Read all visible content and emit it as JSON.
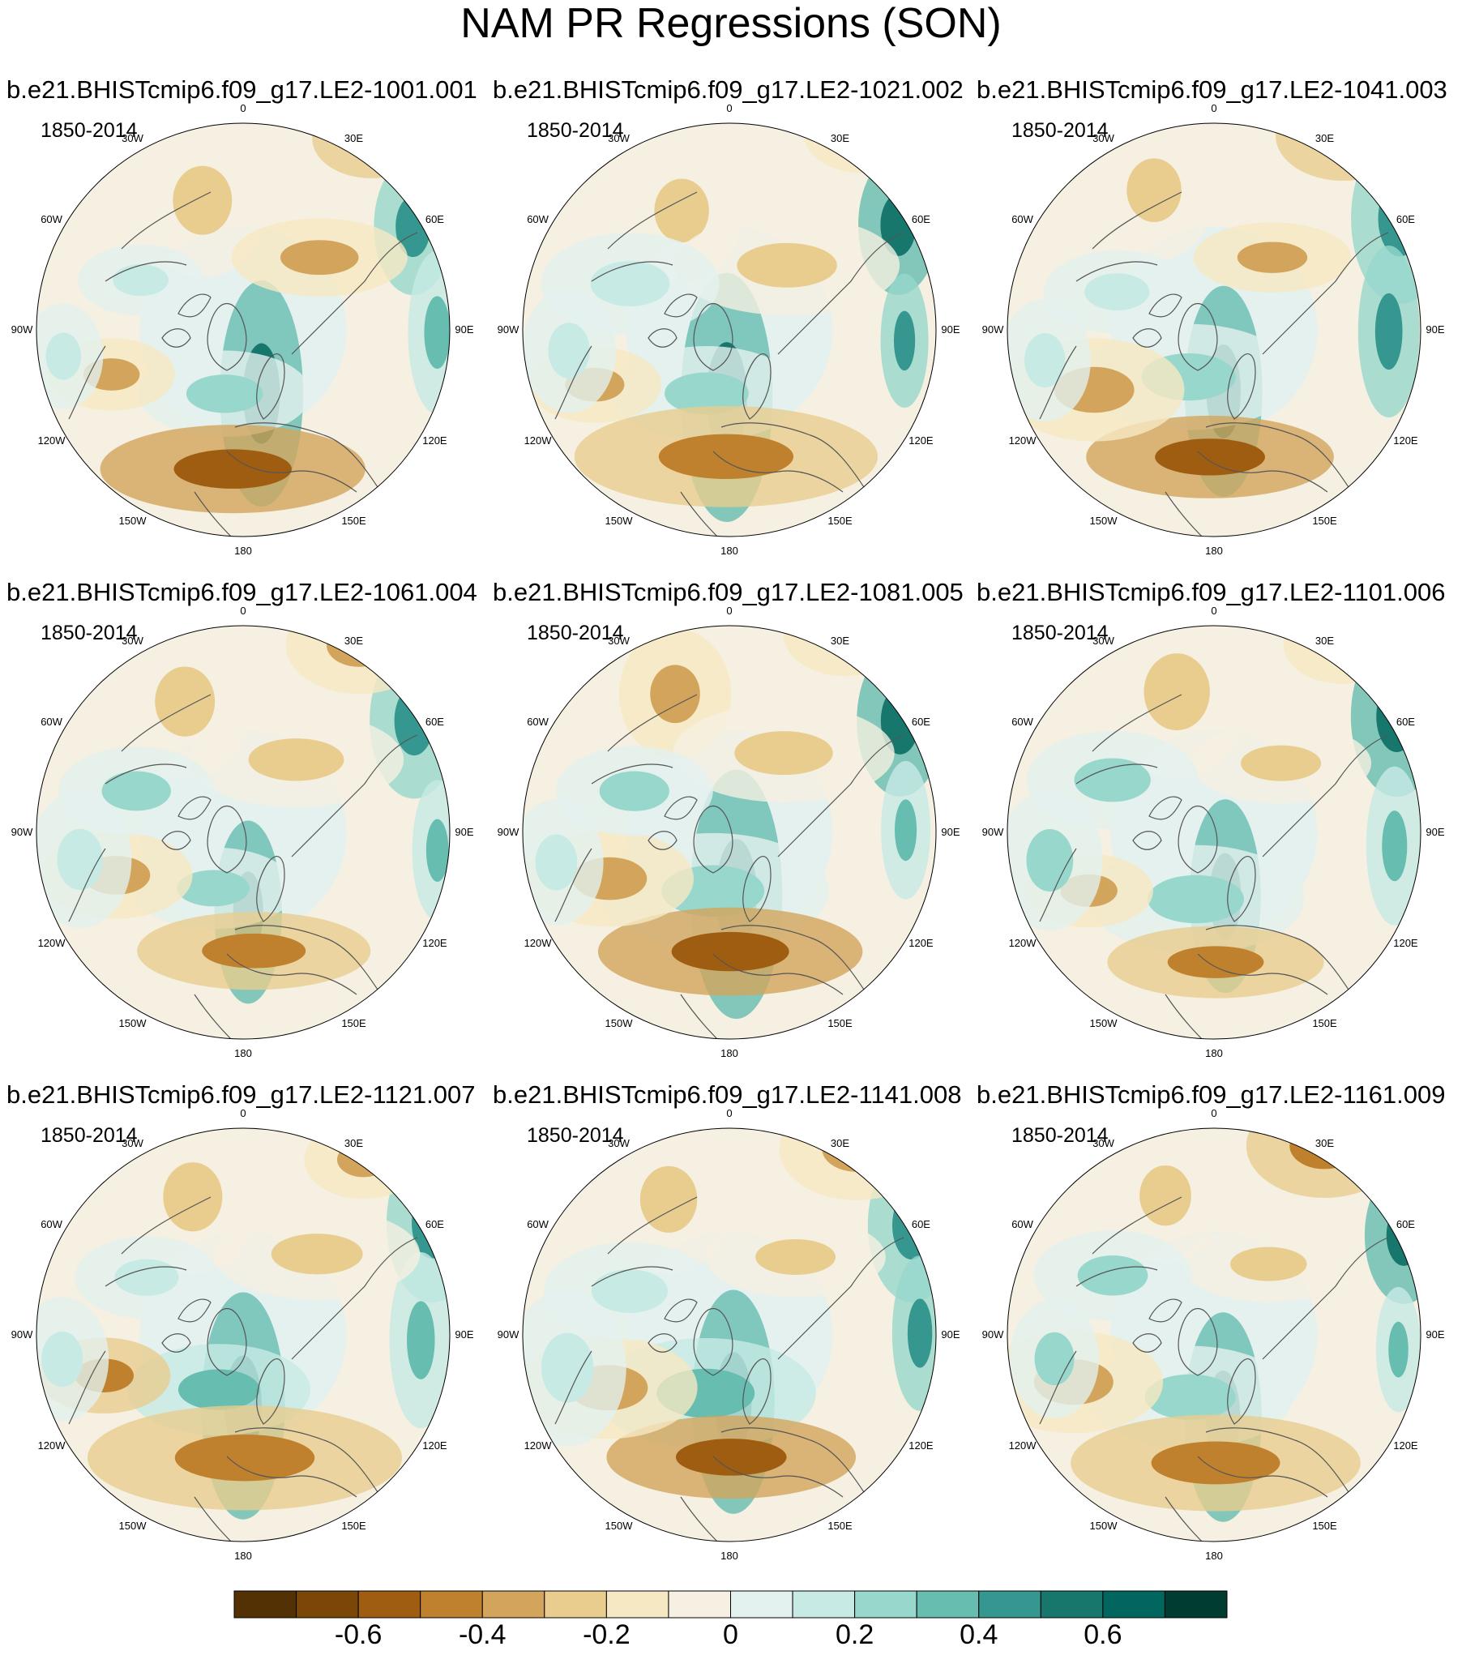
{
  "figure": {
    "title": "NAM PR Regressions (SON)",
    "period": "1850-2014"
  },
  "panels": [
    {
      "title": "b.e21.BHISTcmip6.f09_g17.LE2-1001.001"
    },
    {
      "title": "b.e21.BHISTcmip6.f09_g17.LE2-1021.002"
    },
    {
      "title": "b.e21.BHISTcmip6.f09_g17.LE2-1041.003"
    },
    {
      "title": "b.e21.BHISTcmip6.f09_g17.LE2-1061.004"
    },
    {
      "title": "b.e21.BHISTcmip6.f09_g17.LE2-1081.005"
    },
    {
      "title": "b.e21.BHISTcmip6.f09_g17.LE2-1101.006"
    },
    {
      "title": "b.e21.BHISTcmip6.f09_g17.LE2-1121.007"
    },
    {
      "title": "b.e21.BHISTcmip6.f09_g17.LE2-1141.008"
    },
    {
      "title": "b.e21.BHISTcmip6.f09_g17.LE2-1161.009"
    }
  ],
  "longitude_labels": [
    {
      "lon": 180,
      "text": "180"
    },
    {
      "lon": 150,
      "text": "150E"
    },
    {
      "lon": 120,
      "text": "120E"
    },
    {
      "lon": 90,
      "text": "90E"
    },
    {
      "lon": 60,
      "text": "60E"
    },
    {
      "lon": 30,
      "text": "30E"
    },
    {
      "lon": 0,
      "text": "0"
    },
    {
      "lon": -30,
      "text": "30W"
    },
    {
      "lon": -60,
      "text": "60W"
    },
    {
      "lon": -90,
      "text": "90W"
    },
    {
      "lon": -120,
      "text": "120W"
    },
    {
      "lon": -150,
      "text": "150W"
    }
  ],
  "colorbar": {
    "colors": [
      "#543005",
      "#7a4709",
      "#9e5d10",
      "#bf812d",
      "#d3a55c",
      "#e8cd8f",
      "#f6e8c3",
      "#f5f0e1",
      "#e3f1ef",
      "#c7eae5",
      "#97d7cc",
      "#66bdb0",
      "#35978f",
      "#18776d",
      "#01665e",
      "#003c30"
    ],
    "tick_labels": [
      {
        "pos": 1.5,
        "text": "-0.6"
      },
      {
        "pos": 3.5,
        "text": "-0.4"
      },
      {
        "pos": 5.5,
        "text": "-0.2"
      },
      {
        "pos": 7.5,
        "text": "0"
      },
      {
        "pos": 9.5,
        "text": "0.2"
      },
      {
        "pos": 11.5,
        "text": "0.4"
      },
      {
        "pos": 13.5,
        "text": "0.6"
      }
    ]
  }
}
